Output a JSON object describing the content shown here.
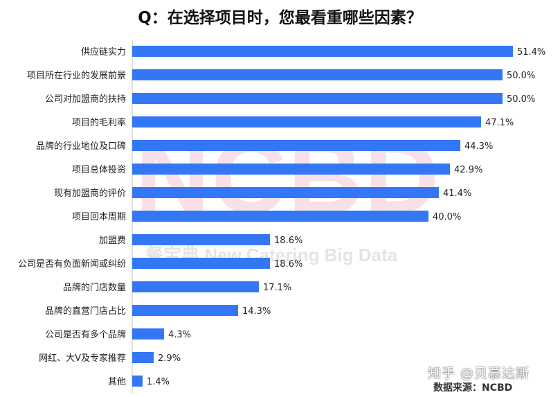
{
  "chart_data": {
    "type": "bar",
    "orientation": "horizontal",
    "title": "Q：在选择项目时，您最看重哪些因素？",
    "categories": [
      "供应链实力",
      "项目所在行业的发展前景",
      "公司对加盟商的扶持",
      "项目的毛利率",
      "品牌的行业地位及口碑",
      "项目总体投资",
      "现有加盟商的评价",
      "项目回本周期",
      "加盟费",
      "公司是否有负面新闻或纠纷",
      "品牌的门店数量",
      "品牌的直营门店占比",
      "公司是否有多个品牌",
      "网红、大V及专家推荐",
      "其他"
    ],
    "values": [
      51.4,
      50.0,
      50.0,
      47.1,
      44.3,
      42.9,
      41.4,
      40.0,
      18.6,
      18.6,
      17.1,
      14.3,
      4.3,
      2.9,
      1.4
    ],
    "value_labels": [
      "51.4%",
      "50.0%",
      "50.0%",
      "47.1%",
      "44.3%",
      "42.9%",
      "41.4%",
      "40.0%",
      "18.6%",
      "18.6%",
      "17.1%",
      "14.3%",
      "4.3%",
      "2.9%",
      "1.4%"
    ],
    "bar_color": "#3377f5",
    "grid": false,
    "legend": "none"
  },
  "watermark": {
    "logo": "NCBD",
    "subtitle": "餐宝典 New Catering Big Data"
  },
  "footer": {
    "credit": "知乎 @贝慕达斯",
    "source": "数据来源：NCBD"
  }
}
